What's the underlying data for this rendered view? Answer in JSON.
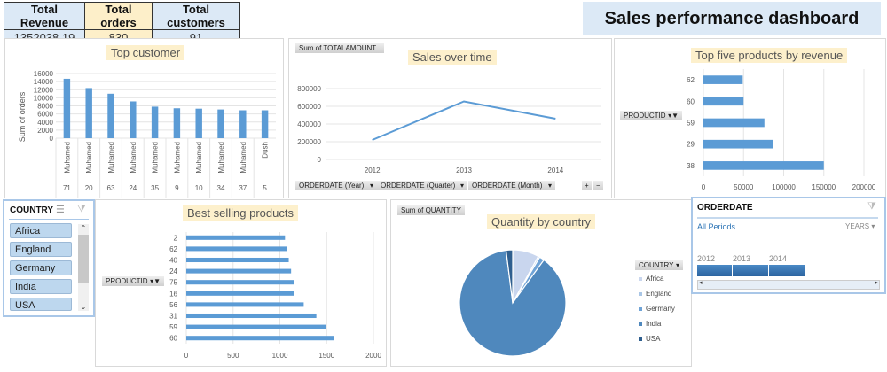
{
  "kpis": {
    "revenue_label": "Total Revenue",
    "revenue_value": "1352038.19",
    "orders_label": "Total orders",
    "orders_value": "830",
    "customers_label": "Total customers",
    "customers_value": "91"
  },
  "dashboard_title": "Sales performance dashboard",
  "colors": {
    "bar": "#5b9bd5",
    "title_bg": "#fdf0cc",
    "slicer_item": "#bdd7ee",
    "header_bg": "#dce9f6"
  },
  "chart_data": [
    {
      "type": "bar",
      "title": "Top customer",
      "ylabel": "Sum of orders",
      "ylim": [
        0,
        16000
      ],
      "yticks": [
        "0",
        "2000",
        "4000",
        "6000",
        "8000",
        "10000",
        "12000",
        "14000",
        "16000"
      ],
      "categories": [
        {
          "name": "Muhamed",
          "id": "71"
        },
        {
          "name": "Muhamed",
          "id": "20"
        },
        {
          "name": "Muhamed",
          "id": "63"
        },
        {
          "name": "Muhamed",
          "id": "24"
        },
        {
          "name": "Muhamed",
          "id": "35"
        },
        {
          "name": "Muhamed",
          "id": "9"
        },
        {
          "name": "Muhamed",
          "id": "10"
        },
        {
          "name": "Muhamed",
          "id": "34"
        },
        {
          "name": "Muhamed",
          "id": "37"
        },
        {
          "name": "Dush",
          "id": "5"
        }
      ],
      "values": [
        14700,
        12400,
        11000,
        9100,
        7800,
        7400,
        7300,
        7100,
        6900,
        6900
      ],
      "grid": true
    },
    {
      "type": "line",
      "title": "Sales over time",
      "field_button": "Sum of TOTALAMOUNT",
      "ylim": [
        0,
        800000
      ],
      "yticks": [
        "0",
        "200000",
        "400000",
        "600000",
        "800000"
      ],
      "categories": [
        "2012",
        "2013",
        "2014"
      ],
      "values": [
        220000,
        655000,
        460000
      ],
      "grid": true,
      "axis_buttons": [
        "ORDERDATE (Year)",
        "ORDERDATE (Quarter)",
        "ORDERDATE (Month)"
      ],
      "expand_label": "+",
      "collapse_label": "−"
    },
    {
      "type": "bar",
      "orientation": "horizontal",
      "title": "Top five products by revenue",
      "field_button": "PRODUCTID",
      "xlim": [
        0,
        200000
      ],
      "xticks": [
        "0",
        "50000",
        "100000",
        "150000",
        "200000"
      ],
      "categories": [
        "62",
        "60",
        "59",
        "29",
        "38"
      ],
      "values": [
        49000,
        50000,
        76000,
        87000,
        150000
      ],
      "grid": true
    },
    {
      "type": "bar",
      "orientation": "horizontal",
      "title": "Best selling products",
      "field_button": "PRODUCTID",
      "xlim": [
        0,
        2000
      ],
      "xticks": [
        "0",
        "500",
        "1000",
        "1500",
        "2000"
      ],
      "categories": [
        "2",
        "62",
        "40",
        "24",
        "75",
        "16",
        "56",
        "31",
        "59",
        "60"
      ],
      "values": [
        1055,
        1075,
        1095,
        1120,
        1150,
        1155,
        1255,
        1390,
        1495,
        1575
      ],
      "grid": true
    },
    {
      "type": "pie",
      "title": "Quantity by country",
      "field_button": "Sum of QUANTITY",
      "legend_title": "COUNTRY",
      "legend": "right",
      "categories": [
        "Africa",
        "England",
        "Germany",
        "India",
        "USA"
      ],
      "values": [
        8,
        0.5,
        1.5,
        88,
        2
      ],
      "colors": [
        "#c9d6ee",
        "#a9c6e6",
        "#6fa3d6",
        "#4f88bd",
        "#2f5f8f"
      ]
    }
  ],
  "country_slicer": {
    "title": "COUNTRY",
    "items": [
      "Africa",
      "England",
      "Germany",
      "India",
      "USA"
    ]
  },
  "timeline": {
    "title": "ORDERDATE",
    "period": "All Periods",
    "level": "YEARS",
    "years": [
      "2012",
      "2013",
      "2014"
    ]
  }
}
